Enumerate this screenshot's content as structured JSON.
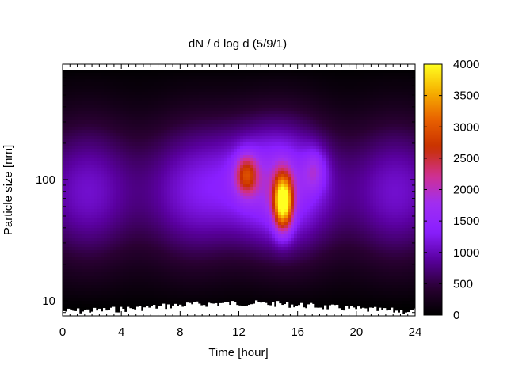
{
  "chart_data": {
    "type": "heatmap",
    "title": "dN / d log d (5/9/1)",
    "xlabel": "Time [hour]",
    "ylabel": "Particle size [nm]",
    "x_range": [
      0,
      24
    ],
    "x_ticks": [
      0,
      4,
      8,
      12,
      16,
      20,
      24
    ],
    "y_scale": "log",
    "y_range": [
      7.5,
      900
    ],
    "y_ticks": [
      10,
      100
    ],
    "colorbar": {
      "range": [
        0,
        4000
      ],
      "ticks": [
        0,
        500,
        1000,
        1500,
        2000,
        2500,
        3000,
        3500,
        4000
      ],
      "palette": [
        "#000000",
        "#2a0033",
        "#5a00a0",
        "#8a1fff",
        "#a02ef2",
        "#d03090",
        "#c83000",
        "#e86000",
        "#f6b000",
        "#ffff20"
      ]
    },
    "features": [
      {
        "description": "broad background mode",
        "time_range": [
          0,
          24
        ],
        "size_peak_nm": 80,
        "value_approx": 1100
      },
      {
        "description": "secondary maximum",
        "time_hour": 12.5,
        "size_nm": 110,
        "value_approx": 2200
      },
      {
        "description": "main maximum",
        "time_hour": 15.0,
        "size_nm": 65,
        "value_approx": 3800
      },
      {
        "description": "shoulder",
        "time_hour": 17.2,
        "size_nm": 120,
        "value_approx": 1700
      }
    ],
    "grid": false
  }
}
